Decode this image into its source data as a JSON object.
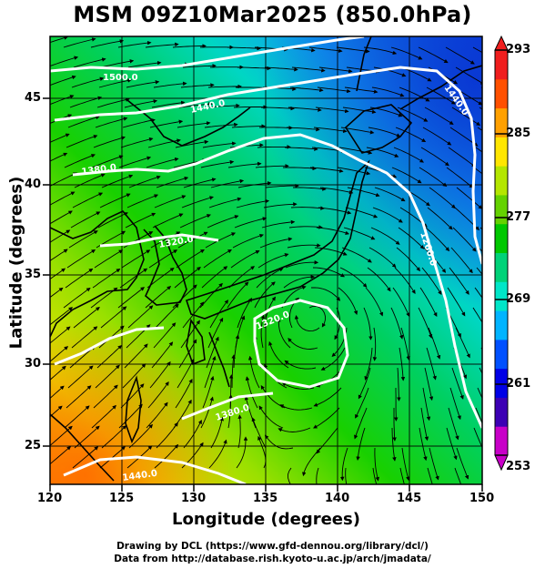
{
  "title": "MSM 09Z10Mar2025 (850.0hPa)",
  "axes": {
    "xlabel": "Longitude (degrees)",
    "ylabel": "Latitude  (degrees)",
    "xticks": [
      "120",
      "125",
      "130",
      "135",
      "140",
      "145",
      "150"
    ],
    "yticks": [
      "45",
      "40",
      "35",
      "30",
      "25"
    ],
    "lon_range": [
      120,
      150
    ],
    "lat_range": [
      22.5,
      47.5
    ]
  },
  "colorbar": {
    "ticks": [
      "293",
      "285",
      "277",
      "269",
      "261",
      "253"
    ],
    "range": [
      253,
      293
    ],
    "colors": [
      "#c800c8",
      "#3c00b4",
      "#0000e6",
      "#0050ff",
      "#00b4ff",
      "#00e6c8",
      "#00d278",
      "#00c800",
      "#64d200",
      "#b4e600",
      "#ffe600",
      "#ffa000",
      "#ff5000",
      "#f01e1e"
    ]
  },
  "contour_labels": [
    "1500.0",
    "1440.0",
    "1440.0",
    "1380.0",
    "1320.0",
    "1260.0",
    "1320.0",
    "1380.0",
    "1440.0"
  ],
  "credits": {
    "line1": "Drawing by DCL (https://www.gfd-dennou.org/library/dcl/)",
    "line2": "Data from http://database.rish.kyoto-u.ac.jp/arch/jmadata/"
  }
}
